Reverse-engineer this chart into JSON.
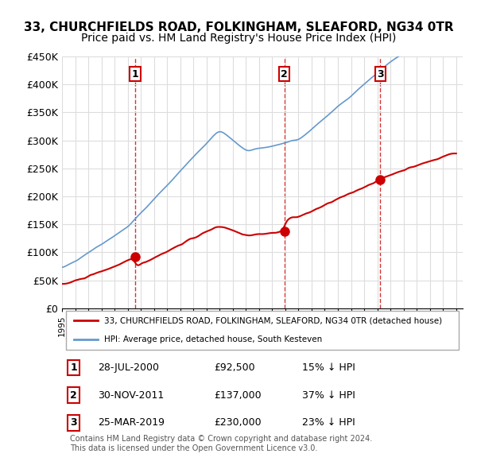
{
  "title": "33, CHURCHFIELDS ROAD, FOLKINGHAM, SLEAFORD, NG34 0TR",
  "subtitle": "Price paid vs. HM Land Registry's House Price Index (HPI)",
  "title_fontsize": 11,
  "subtitle_fontsize": 10,
  "ylim": [
    0,
    450000
  ],
  "yticks": [
    0,
    50000,
    100000,
    150000,
    200000,
    250000,
    300000,
    350000,
    400000,
    450000
  ],
  "ytick_labels": [
    "£0",
    "£50K",
    "£100K",
    "£150K",
    "£200K",
    "£250K",
    "£300K",
    "£350K",
    "£400K",
    "£450K"
  ],
  "hpi_color": "#6699cc",
  "price_color": "#cc0000",
  "transaction_marker_color": "#cc0000",
  "vline_color": "#cc0000",
  "legend_label_price": "33, CHURCHFIELDS ROAD, FOLKINGHAM, SLEAFORD, NG34 0TR (detached house)",
  "legend_label_hpi": "HPI: Average price, detached house, South Kesteven",
  "transactions": [
    {
      "num": 1,
      "date": "28-JUL-2000",
      "price": 92500,
      "pct": "15%",
      "x": 2000.58
    },
    {
      "num": 2,
      "date": "30-NOV-2011",
      "price": 137000,
      "pct": "37%",
      "x": 2011.92
    },
    {
      "num": 3,
      "date": "25-MAR-2019",
      "price": 230000,
      "pct": "23%",
      "x": 2019.23
    }
  ],
  "footer": "Contains HM Land Registry data © Crown copyright and database right 2024.\nThis data is licensed under the Open Government Licence v3.0.",
  "background_color": "#ffffff",
  "plot_bg_color": "#ffffff",
  "grid_color": "#dddddd"
}
